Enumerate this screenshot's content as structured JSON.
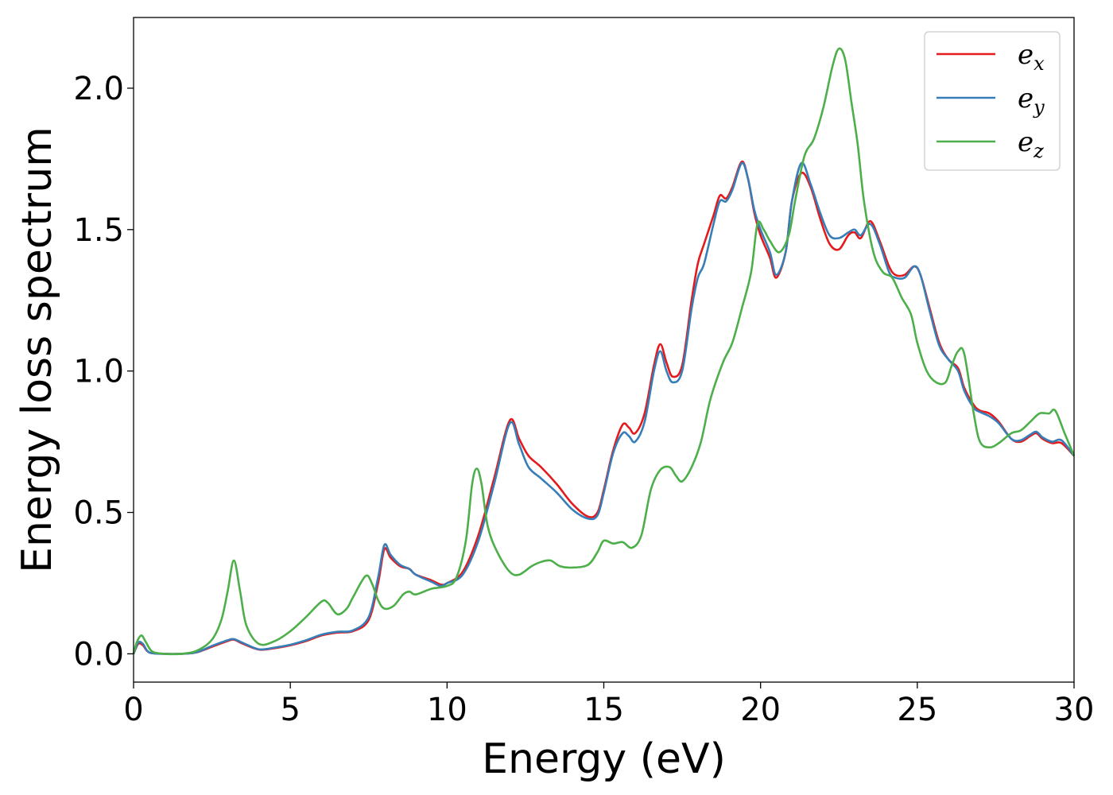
{
  "chart_data": {
    "type": "line",
    "title": "",
    "xlabel": "Energy (eV)",
    "ylabel": "Energy loss spectrum",
    "xlim": [
      0,
      30
    ],
    "ylim": [
      -0.1,
      2.25
    ],
    "xticks": [
      0,
      5,
      10,
      15,
      20,
      25,
      30
    ],
    "yticks": [
      0.0,
      0.5,
      1.0,
      1.5,
      2.0
    ],
    "xtick_labels": [
      "0",
      "5",
      "10",
      "15",
      "20",
      "25",
      "30"
    ],
    "ytick_labels": [
      "0.0",
      "0.5",
      "1.0",
      "1.5",
      "2.0"
    ],
    "grid": false,
    "legend_position": "top-right",
    "series": [
      {
        "name": "e_x",
        "legend_base": "e",
        "legend_sub": "x",
        "color": "#e41a1c",
        "points": [
          [
            0,
            0
          ],
          [
            0.15,
            0.035
          ],
          [
            0.3,
            0.03
          ],
          [
            0.5,
            0.005
          ],
          [
            1,
            0
          ],
          [
            1.5,
            0
          ],
          [
            2,
            0.005
          ],
          [
            2.5,
            0.025
          ],
          [
            3,
            0.045
          ],
          [
            3.2,
            0.05
          ],
          [
            3.5,
            0.035
          ],
          [
            4,
            0.015
          ],
          [
            4.5,
            0.02
          ],
          [
            5,
            0.03
          ],
          [
            5.5,
            0.045
          ],
          [
            6,
            0.065
          ],
          [
            6.5,
            0.075
          ],
          [
            7,
            0.08
          ],
          [
            7.5,
            0.12
          ],
          [
            7.8,
            0.25
          ],
          [
            8,
            0.37
          ],
          [
            8.2,
            0.34
          ],
          [
            8.5,
            0.31
          ],
          [
            8.8,
            0.3
          ],
          [
            9,
            0.28
          ],
          [
            9.5,
            0.26
          ],
          [
            9.8,
            0.245
          ],
          [
            10,
            0.25
          ],
          [
            10.5,
            0.29
          ],
          [
            11,
            0.42
          ],
          [
            11.5,
            0.62
          ],
          [
            12,
            0.825
          ],
          [
            12.3,
            0.76
          ],
          [
            12.6,
            0.7
          ],
          [
            13,
            0.66
          ],
          [
            13.5,
            0.6
          ],
          [
            14,
            0.53
          ],
          [
            14.5,
            0.485
          ],
          [
            14.8,
            0.5
          ],
          [
            15,
            0.58
          ],
          [
            15.3,
            0.72
          ],
          [
            15.6,
            0.81
          ],
          [
            15.8,
            0.8
          ],
          [
            16,
            0.78
          ],
          [
            16.3,
            0.85
          ],
          [
            16.6,
            1.02
          ],
          [
            16.8,
            1.095
          ],
          [
            17,
            1.03
          ],
          [
            17.2,
            0.98
          ],
          [
            17.5,
            1.02
          ],
          [
            17.8,
            1.25
          ],
          [
            18,
            1.38
          ],
          [
            18.2,
            1.45
          ],
          [
            18.5,
            1.55
          ],
          [
            18.7,
            1.62
          ],
          [
            18.9,
            1.61
          ],
          [
            19.1,
            1.65
          ],
          [
            19.4,
            1.74
          ],
          [
            19.6,
            1.68
          ],
          [
            19.8,
            1.56
          ],
          [
            20,
            1.48
          ],
          [
            20.3,
            1.4
          ],
          [
            20.5,
            1.33
          ],
          [
            20.8,
            1.42
          ],
          [
            21,
            1.6
          ],
          [
            21.3,
            1.7
          ],
          [
            21.6,
            1.65
          ],
          [
            21.9,
            1.54
          ],
          [
            22.2,
            1.45
          ],
          [
            22.5,
            1.43
          ],
          [
            22.8,
            1.48
          ],
          [
            23,
            1.49
          ],
          [
            23.2,
            1.47
          ],
          [
            23.5,
            1.53
          ],
          [
            23.8,
            1.46
          ],
          [
            24.1,
            1.37
          ],
          [
            24.3,
            1.34
          ],
          [
            24.6,
            1.34
          ],
          [
            24.9,
            1.37
          ],
          [
            25.1,
            1.34
          ],
          [
            25.4,
            1.22
          ],
          [
            25.7,
            1.1
          ],
          [
            26,
            1.04
          ],
          [
            26.3,
            1.01
          ],
          [
            26.5,
            0.94
          ],
          [
            26.8,
            0.88
          ],
          [
            27,
            0.86
          ],
          [
            27.3,
            0.85
          ],
          [
            27.6,
            0.82
          ],
          [
            28,
            0.76
          ],
          [
            28.3,
            0.75
          ],
          [
            28.6,
            0.77
          ],
          [
            28.8,
            0.78
          ],
          [
            29,
            0.76
          ],
          [
            29.3,
            0.745
          ],
          [
            29.6,
            0.745
          ],
          [
            30,
            0.7
          ]
        ]
      },
      {
        "name": "e_y",
        "legend_base": "e",
        "legend_sub": "y",
        "color": "#377eb8",
        "points": [
          [
            0,
            0
          ],
          [
            0.15,
            0.04
          ],
          [
            0.3,
            0.035
          ],
          [
            0.5,
            0.005
          ],
          [
            1,
            0
          ],
          [
            1.5,
            0
          ],
          [
            2,
            0.005
          ],
          [
            2.5,
            0.028
          ],
          [
            3,
            0.048
          ],
          [
            3.2,
            0.052
          ],
          [
            3.5,
            0.038
          ],
          [
            4,
            0.016
          ],
          [
            4.5,
            0.022
          ],
          [
            5,
            0.032
          ],
          [
            5.5,
            0.048
          ],
          [
            6,
            0.068
          ],
          [
            6.5,
            0.078
          ],
          [
            7,
            0.083
          ],
          [
            7.5,
            0.13
          ],
          [
            7.8,
            0.27
          ],
          [
            8,
            0.385
          ],
          [
            8.2,
            0.35
          ],
          [
            8.5,
            0.315
          ],
          [
            8.8,
            0.3
          ],
          [
            9,
            0.28
          ],
          [
            9.5,
            0.255
          ],
          [
            9.8,
            0.24
          ],
          [
            10,
            0.25
          ],
          [
            10.5,
            0.28
          ],
          [
            11,
            0.4
          ],
          [
            11.5,
            0.6
          ],
          [
            12,
            0.815
          ],
          [
            12.3,
            0.74
          ],
          [
            12.6,
            0.66
          ],
          [
            13,
            0.62
          ],
          [
            13.5,
            0.57
          ],
          [
            14,
            0.51
          ],
          [
            14.5,
            0.478
          ],
          [
            14.8,
            0.49
          ],
          [
            15,
            0.57
          ],
          [
            15.3,
            0.71
          ],
          [
            15.6,
            0.78
          ],
          [
            15.8,
            0.77
          ],
          [
            16,
            0.75
          ],
          [
            16.3,
            0.82
          ],
          [
            16.6,
            1.0
          ],
          [
            16.8,
            1.07
          ],
          [
            17,
            1.0
          ],
          [
            17.2,
            0.96
          ],
          [
            17.5,
            1.0
          ],
          [
            17.8,
            1.22
          ],
          [
            18,
            1.33
          ],
          [
            18.2,
            1.38
          ],
          [
            18.5,
            1.52
          ],
          [
            18.7,
            1.6
          ],
          [
            18.9,
            1.6
          ],
          [
            19.1,
            1.64
          ],
          [
            19.4,
            1.735
          ],
          [
            19.6,
            1.68
          ],
          [
            19.8,
            1.57
          ],
          [
            20,
            1.5
          ],
          [
            20.3,
            1.42
          ],
          [
            20.5,
            1.34
          ],
          [
            20.8,
            1.42
          ],
          [
            21,
            1.6
          ],
          [
            21.3,
            1.735
          ],
          [
            21.6,
            1.66
          ],
          [
            21.9,
            1.56
          ],
          [
            22.2,
            1.48
          ],
          [
            22.5,
            1.47
          ],
          [
            22.8,
            1.49
          ],
          [
            23,
            1.5
          ],
          [
            23.2,
            1.48
          ],
          [
            23.5,
            1.52
          ],
          [
            23.8,
            1.45
          ],
          [
            24.1,
            1.35
          ],
          [
            24.3,
            1.33
          ],
          [
            24.6,
            1.33
          ],
          [
            24.9,
            1.37
          ],
          [
            25.1,
            1.34
          ],
          [
            25.4,
            1.21
          ],
          [
            25.7,
            1.09
          ],
          [
            26,
            1.04
          ],
          [
            26.3,
            1.0
          ],
          [
            26.5,
            0.93
          ],
          [
            26.8,
            0.87
          ],
          [
            27,
            0.855
          ],
          [
            27.3,
            0.84
          ],
          [
            27.6,
            0.815
          ],
          [
            28,
            0.76
          ],
          [
            28.3,
            0.755
          ],
          [
            28.6,
            0.775
          ],
          [
            28.8,
            0.785
          ],
          [
            29,
            0.765
          ],
          [
            29.3,
            0.75
          ],
          [
            29.6,
            0.755
          ],
          [
            30,
            0.7
          ]
        ]
      },
      {
        "name": "e_z",
        "legend_base": "e",
        "legend_sub": "z",
        "color": "#4daf4a",
        "points": [
          [
            0,
            0
          ],
          [
            0.1,
            0.04
          ],
          [
            0.25,
            0.065
          ],
          [
            0.4,
            0.04
          ],
          [
            0.6,
            0.008
          ],
          [
            1,
            0
          ],
          [
            1.5,
            0
          ],
          [
            2,
            0.01
          ],
          [
            2.5,
            0.05
          ],
          [
            2.8,
            0.12
          ],
          [
            3,
            0.22
          ],
          [
            3.2,
            0.33
          ],
          [
            3.4,
            0.22
          ],
          [
            3.6,
            0.1
          ],
          [
            4,
            0.035
          ],
          [
            4.5,
            0.045
          ],
          [
            5,
            0.08
          ],
          [
            5.5,
            0.13
          ],
          [
            6,
            0.185
          ],
          [
            6.2,
            0.18
          ],
          [
            6.5,
            0.14
          ],
          [
            6.8,
            0.16
          ],
          [
            7,
            0.2
          ],
          [
            7.4,
            0.275
          ],
          [
            7.6,
            0.25
          ],
          [
            7.8,
            0.19
          ],
          [
            8,
            0.16
          ],
          [
            8.3,
            0.17
          ],
          [
            8.6,
            0.21
          ],
          [
            8.8,
            0.22
          ],
          [
            9,
            0.21
          ],
          [
            9.5,
            0.23
          ],
          [
            10,
            0.24
          ],
          [
            10.3,
            0.27
          ],
          [
            10.6,
            0.4
          ],
          [
            10.8,
            0.6
          ],
          [
            10.95,
            0.655
          ],
          [
            11.1,
            0.6
          ],
          [
            11.3,
            0.45
          ],
          [
            11.6,
            0.36
          ],
          [
            12,
            0.29
          ],
          [
            12.3,
            0.28
          ],
          [
            12.7,
            0.31
          ],
          [
            13,
            0.325
          ],
          [
            13.3,
            0.33
          ],
          [
            13.6,
            0.31
          ],
          [
            14,
            0.305
          ],
          [
            14.5,
            0.315
          ],
          [
            14.8,
            0.36
          ],
          [
            15,
            0.4
          ],
          [
            15.3,
            0.39
          ],
          [
            15.6,
            0.395
          ],
          [
            15.9,
            0.375
          ],
          [
            16.2,
            0.42
          ],
          [
            16.5,
            0.58
          ],
          [
            16.8,
            0.65
          ],
          [
            17.1,
            0.66
          ],
          [
            17.3,
            0.63
          ],
          [
            17.5,
            0.61
          ],
          [
            17.8,
            0.66
          ],
          [
            18.1,
            0.75
          ],
          [
            18.4,
            0.9
          ],
          [
            18.8,
            1.03
          ],
          [
            19.1,
            1.1
          ],
          [
            19.4,
            1.22
          ],
          [
            19.7,
            1.35
          ],
          [
            19.9,
            1.52
          ],
          [
            20.1,
            1.5
          ],
          [
            20.3,
            1.46
          ],
          [
            20.6,
            1.42
          ],
          [
            20.9,
            1.48
          ],
          [
            21.1,
            1.6
          ],
          [
            21.4,
            1.76
          ],
          [
            21.7,
            1.82
          ],
          [
            22,
            1.93
          ],
          [
            22.3,
            2.08
          ],
          [
            22.5,
            2.14
          ],
          [
            22.7,
            2.1
          ],
          [
            22.9,
            1.95
          ],
          [
            23.1,
            1.8
          ],
          [
            23.3,
            1.6
          ],
          [
            23.6,
            1.42
          ],
          [
            23.9,
            1.35
          ],
          [
            24.2,
            1.33
          ],
          [
            24.5,
            1.26
          ],
          [
            24.8,
            1.2
          ],
          [
            25,
            1.1
          ],
          [
            25.3,
            1.0
          ],
          [
            25.6,
            0.96
          ],
          [
            25.9,
            0.96
          ],
          [
            26.1,
            1.02
          ],
          [
            26.3,
            1.07
          ],
          [
            26.5,
            1.06
          ],
          [
            26.8,
            0.85
          ],
          [
            27,
            0.75
          ],
          [
            27.3,
            0.73
          ],
          [
            27.6,
            0.745
          ],
          [
            28,
            0.78
          ],
          [
            28.3,
            0.79
          ],
          [
            28.6,
            0.82
          ],
          [
            28.9,
            0.85
          ],
          [
            29.2,
            0.85
          ],
          [
            29.4,
            0.86
          ],
          [
            29.7,
            0.78
          ],
          [
            30,
            0.7
          ]
        ]
      }
    ]
  }
}
